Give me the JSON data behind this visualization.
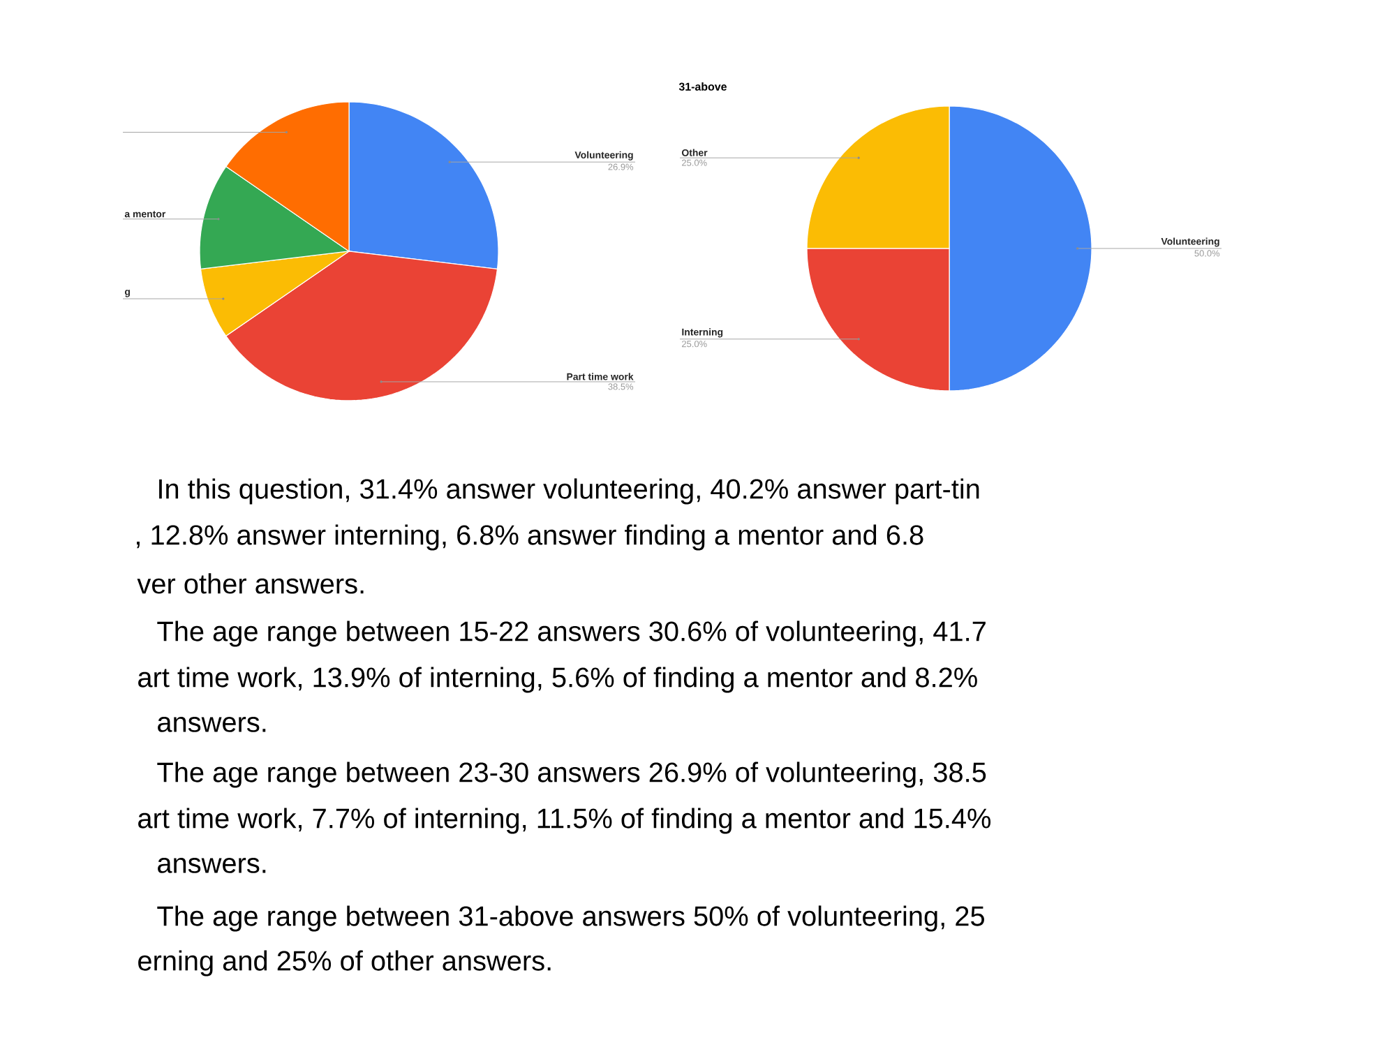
{
  "chart_data": [
    {
      "type": "pie",
      "categories": [
        "Volunteering",
        "Part time work",
        "g",
        "a mentor",
        null
      ],
      "values": [
        26.9,
        38.5,
        7.7,
        11.5,
        15.4
      ],
      "colors": [
        "#4285f4",
        "#ea4335",
        "#fbbc04",
        "#34a853",
        "#ff6d01"
      ],
      "value_labels": [
        "26.9%",
        "38.5%",
        null,
        null,
        null
      ]
    },
    {
      "type": "pie",
      "title": "31-above",
      "categories": [
        "Volunteering",
        "Interning",
        "Other"
      ],
      "values": [
        50,
        25,
        25
      ],
      "colors": [
        "#4285f4",
        "#ea4335",
        "#fbbc04"
      ],
      "value_labels": [
        "50.0%",
        "25.0%",
        "25.0%"
      ]
    },
    {
      "type": "other",
      "annotations": [
        "In this question, 31.4% answer volunteering, 40.2% answer part-tin",
        ", 12.8% answer interning, 6.8% answer finding a mentor and 6.8",
        "ver other answers.",
        "The age range between 15-22 answers 30.6% of volunteering, 41.7",
        "art time work, 13.9% of interning, 5.6% of finding a mentor and 8.2%",
        "answers.",
        "The age range between 23-30 answers 26.9% of volunteering, 38.5",
        "art time work, 7.7% of interning, 11.5% of finding a mentor and 15.4%",
        "answers.",
        "The age range between 31-above answers 50% of volunteering, 25",
        "erning and 25% of other answers."
      ]
    }
  ]
}
